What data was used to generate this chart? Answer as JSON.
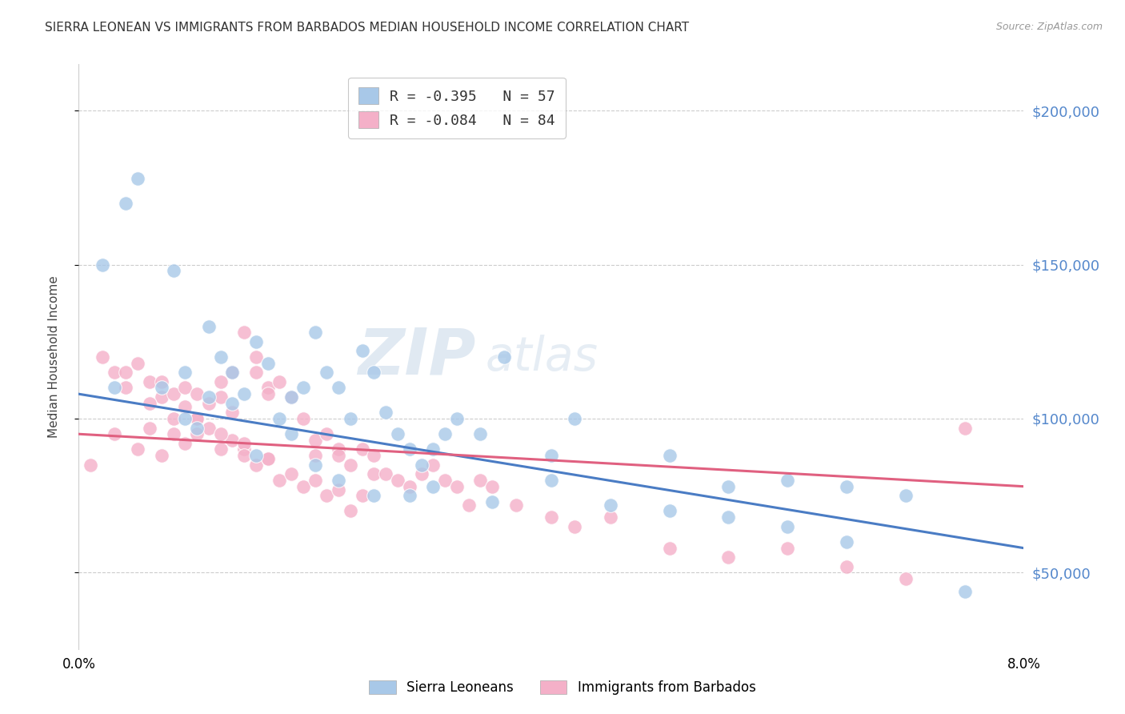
{
  "title": "SIERRA LEONEAN VS IMMIGRANTS FROM BARBADOS MEDIAN HOUSEHOLD INCOME CORRELATION CHART",
  "source": "Source: ZipAtlas.com",
  "ylabel": "Median Household Income",
  "xlim": [
    0.0,
    0.08
  ],
  "ylim": [
    25000,
    215000
  ],
  "yticks": [
    50000,
    100000,
    150000,
    200000
  ],
  "ytick_labels": [
    "$50,000",
    "$100,000",
    "$150,000",
    "$200,000"
  ],
  "xticks": [
    0.0,
    0.01,
    0.02,
    0.03,
    0.04,
    0.05,
    0.06,
    0.07,
    0.08
  ],
  "xtick_labels": [
    "0.0%",
    "",
    "",
    "",
    "",
    "",
    "",
    "",
    "8.0%"
  ],
  "legend_line1": "R = -0.395   N = 57",
  "legend_line2": "R = -0.084   N = 84",
  "blue_color": "#a8c8e8",
  "pink_color": "#f4b0c8",
  "blue_line_color": "#4a7cc4",
  "pink_line_color": "#e06080",
  "ytick_color": "#5588cc",
  "title_fontsize": 11,
  "source_fontsize": 9,
  "watermark_zip": "ZIP",
  "watermark_atlas": "atlas",
  "blue_scatter_x": [
    0.004,
    0.005,
    0.008,
    0.009,
    0.01,
    0.011,
    0.012,
    0.013,
    0.014,
    0.015,
    0.016,
    0.017,
    0.018,
    0.019,
    0.02,
    0.021,
    0.022,
    0.023,
    0.024,
    0.025,
    0.026,
    0.027,
    0.028,
    0.029,
    0.03,
    0.031,
    0.032,
    0.034,
    0.036,
    0.04,
    0.042,
    0.05,
    0.055,
    0.06,
    0.065,
    0.07,
    0.003,
    0.007,
    0.009,
    0.011,
    0.013,
    0.015,
    0.018,
    0.02,
    0.022,
    0.025,
    0.028,
    0.03,
    0.035,
    0.04,
    0.045,
    0.05,
    0.055,
    0.06,
    0.065,
    0.075,
    0.002
  ],
  "blue_scatter_y": [
    170000,
    178000,
    148000,
    100000,
    97000,
    130000,
    120000,
    115000,
    108000,
    125000,
    118000,
    100000,
    107000,
    110000,
    128000,
    115000,
    110000,
    100000,
    122000,
    115000,
    102000,
    95000,
    90000,
    85000,
    90000,
    95000,
    100000,
    95000,
    120000,
    88000,
    100000,
    88000,
    78000,
    80000,
    78000,
    75000,
    110000,
    110000,
    115000,
    107000,
    105000,
    88000,
    95000,
    85000,
    80000,
    75000,
    75000,
    78000,
    73000,
    80000,
    72000,
    70000,
    68000,
    65000,
    60000,
    44000,
    150000
  ],
  "pink_scatter_x": [
    0.001,
    0.002,
    0.003,
    0.004,
    0.005,
    0.006,
    0.007,
    0.007,
    0.008,
    0.009,
    0.009,
    0.01,
    0.01,
    0.011,
    0.012,
    0.012,
    0.013,
    0.013,
    0.014,
    0.015,
    0.015,
    0.016,
    0.016,
    0.017,
    0.018,
    0.019,
    0.02,
    0.02,
    0.021,
    0.022,
    0.022,
    0.023,
    0.024,
    0.025,
    0.025,
    0.026,
    0.027,
    0.028,
    0.029,
    0.03,
    0.031,
    0.032,
    0.033,
    0.034,
    0.035,
    0.037,
    0.04,
    0.042,
    0.045,
    0.05,
    0.055,
    0.06,
    0.065,
    0.07,
    0.075,
    0.003,
    0.005,
    0.007,
    0.009,
    0.011,
    0.013,
    0.015,
    0.017,
    0.019,
    0.021,
    0.023,
    0.006,
    0.008,
    0.01,
    0.012,
    0.014,
    0.016,
    0.018,
    0.02,
    0.022,
    0.024,
    0.014,
    0.016,
    0.004,
    0.006,
    0.008,
    0.01,
    0.012,
    0.014
  ],
  "pink_scatter_y": [
    85000,
    120000,
    115000,
    115000,
    118000,
    112000,
    112000,
    107000,
    108000,
    110000,
    104000,
    100000,
    108000,
    105000,
    112000,
    107000,
    115000,
    102000,
    128000,
    120000,
    115000,
    110000,
    108000,
    112000,
    107000,
    100000,
    93000,
    88000,
    95000,
    90000,
    88000,
    85000,
    90000,
    88000,
    82000,
    82000,
    80000,
    78000,
    82000,
    85000,
    80000,
    78000,
    72000,
    80000,
    78000,
    72000,
    68000,
    65000,
    68000,
    58000,
    55000,
    58000,
    52000,
    48000,
    97000,
    95000,
    90000,
    88000,
    92000,
    97000,
    93000,
    85000,
    80000,
    78000,
    75000,
    70000,
    97000,
    95000,
    100000,
    95000,
    90000,
    87000,
    82000,
    80000,
    77000,
    75000,
    92000,
    87000,
    110000,
    105000,
    100000,
    95000,
    90000,
    88000
  ],
  "blue_trend_x": [
    0.0,
    0.08
  ],
  "blue_trend_y": [
    108000,
    58000
  ],
  "pink_trend_x": [
    0.0,
    0.08
  ],
  "pink_trend_y": [
    95000,
    78000
  ]
}
